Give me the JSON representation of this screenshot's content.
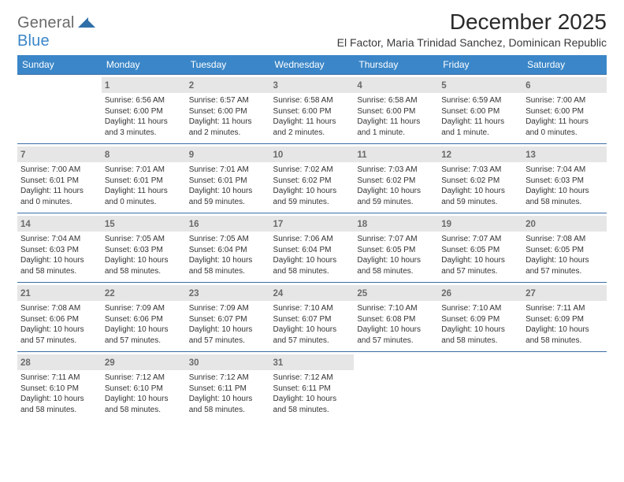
{
  "logo": {
    "text_general": "General",
    "text_blue": "Blue",
    "color_general": "#6a6a6a",
    "color_blue": "#3a86c8",
    "mark_color": "#2f6fa8"
  },
  "title": "December 2025",
  "location": "El Factor, Maria Trinidad Sanchez, Dominican Republic",
  "styling": {
    "header_bg": "#3a86c8",
    "header_fg": "#ffffff",
    "daynum_bg": "#e6e6e6",
    "daynum_fg": "#6a6a6a",
    "cell_border": "#3a6ea5",
    "body_text": "#333333",
    "title_fontsize": 28,
    "location_fontsize": 14,
    "weekday_fontsize": 12,
    "daynum_fontsize": 11.5,
    "entry_fontsize": 10,
    "page_bg": "#ffffff"
  },
  "weekdays": [
    "Sunday",
    "Monday",
    "Tuesday",
    "Wednesday",
    "Thursday",
    "Friday",
    "Saturday"
  ],
  "weeks": [
    [
      null,
      {
        "day": "1",
        "sunrise": "Sunrise: 6:56 AM",
        "sunset": "Sunset: 6:00 PM",
        "daylight": "Daylight: 11 hours and 3 minutes."
      },
      {
        "day": "2",
        "sunrise": "Sunrise: 6:57 AM",
        "sunset": "Sunset: 6:00 PM",
        "daylight": "Daylight: 11 hours and 2 minutes."
      },
      {
        "day": "3",
        "sunrise": "Sunrise: 6:58 AM",
        "sunset": "Sunset: 6:00 PM",
        "daylight": "Daylight: 11 hours and 2 minutes."
      },
      {
        "day": "4",
        "sunrise": "Sunrise: 6:58 AM",
        "sunset": "Sunset: 6:00 PM",
        "daylight": "Daylight: 11 hours and 1 minute."
      },
      {
        "day": "5",
        "sunrise": "Sunrise: 6:59 AM",
        "sunset": "Sunset: 6:00 PM",
        "daylight": "Daylight: 11 hours and 1 minute."
      },
      {
        "day": "6",
        "sunrise": "Sunrise: 7:00 AM",
        "sunset": "Sunset: 6:00 PM",
        "daylight": "Daylight: 11 hours and 0 minutes."
      }
    ],
    [
      {
        "day": "7",
        "sunrise": "Sunrise: 7:00 AM",
        "sunset": "Sunset: 6:01 PM",
        "daylight": "Daylight: 11 hours and 0 minutes."
      },
      {
        "day": "8",
        "sunrise": "Sunrise: 7:01 AM",
        "sunset": "Sunset: 6:01 PM",
        "daylight": "Daylight: 11 hours and 0 minutes."
      },
      {
        "day": "9",
        "sunrise": "Sunrise: 7:01 AM",
        "sunset": "Sunset: 6:01 PM",
        "daylight": "Daylight: 10 hours and 59 minutes."
      },
      {
        "day": "10",
        "sunrise": "Sunrise: 7:02 AM",
        "sunset": "Sunset: 6:02 PM",
        "daylight": "Daylight: 10 hours and 59 minutes."
      },
      {
        "day": "11",
        "sunrise": "Sunrise: 7:03 AM",
        "sunset": "Sunset: 6:02 PM",
        "daylight": "Daylight: 10 hours and 59 minutes."
      },
      {
        "day": "12",
        "sunrise": "Sunrise: 7:03 AM",
        "sunset": "Sunset: 6:02 PM",
        "daylight": "Daylight: 10 hours and 59 minutes."
      },
      {
        "day": "13",
        "sunrise": "Sunrise: 7:04 AM",
        "sunset": "Sunset: 6:03 PM",
        "daylight": "Daylight: 10 hours and 58 minutes."
      }
    ],
    [
      {
        "day": "14",
        "sunrise": "Sunrise: 7:04 AM",
        "sunset": "Sunset: 6:03 PM",
        "daylight": "Daylight: 10 hours and 58 minutes."
      },
      {
        "day": "15",
        "sunrise": "Sunrise: 7:05 AM",
        "sunset": "Sunset: 6:03 PM",
        "daylight": "Daylight: 10 hours and 58 minutes."
      },
      {
        "day": "16",
        "sunrise": "Sunrise: 7:05 AM",
        "sunset": "Sunset: 6:04 PM",
        "daylight": "Daylight: 10 hours and 58 minutes."
      },
      {
        "day": "17",
        "sunrise": "Sunrise: 7:06 AM",
        "sunset": "Sunset: 6:04 PM",
        "daylight": "Daylight: 10 hours and 58 minutes."
      },
      {
        "day": "18",
        "sunrise": "Sunrise: 7:07 AM",
        "sunset": "Sunset: 6:05 PM",
        "daylight": "Daylight: 10 hours and 58 minutes."
      },
      {
        "day": "19",
        "sunrise": "Sunrise: 7:07 AM",
        "sunset": "Sunset: 6:05 PM",
        "daylight": "Daylight: 10 hours and 57 minutes."
      },
      {
        "day": "20",
        "sunrise": "Sunrise: 7:08 AM",
        "sunset": "Sunset: 6:05 PM",
        "daylight": "Daylight: 10 hours and 57 minutes."
      }
    ],
    [
      {
        "day": "21",
        "sunrise": "Sunrise: 7:08 AM",
        "sunset": "Sunset: 6:06 PM",
        "daylight": "Daylight: 10 hours and 57 minutes."
      },
      {
        "day": "22",
        "sunrise": "Sunrise: 7:09 AM",
        "sunset": "Sunset: 6:06 PM",
        "daylight": "Daylight: 10 hours and 57 minutes."
      },
      {
        "day": "23",
        "sunrise": "Sunrise: 7:09 AM",
        "sunset": "Sunset: 6:07 PM",
        "daylight": "Daylight: 10 hours and 57 minutes."
      },
      {
        "day": "24",
        "sunrise": "Sunrise: 7:10 AM",
        "sunset": "Sunset: 6:07 PM",
        "daylight": "Daylight: 10 hours and 57 minutes."
      },
      {
        "day": "25",
        "sunrise": "Sunrise: 7:10 AM",
        "sunset": "Sunset: 6:08 PM",
        "daylight": "Daylight: 10 hours and 57 minutes."
      },
      {
        "day": "26",
        "sunrise": "Sunrise: 7:10 AM",
        "sunset": "Sunset: 6:09 PM",
        "daylight": "Daylight: 10 hours and 58 minutes."
      },
      {
        "day": "27",
        "sunrise": "Sunrise: 7:11 AM",
        "sunset": "Sunset: 6:09 PM",
        "daylight": "Daylight: 10 hours and 58 minutes."
      }
    ],
    [
      {
        "day": "28",
        "sunrise": "Sunrise: 7:11 AM",
        "sunset": "Sunset: 6:10 PM",
        "daylight": "Daylight: 10 hours and 58 minutes."
      },
      {
        "day": "29",
        "sunrise": "Sunrise: 7:12 AM",
        "sunset": "Sunset: 6:10 PM",
        "daylight": "Daylight: 10 hours and 58 minutes."
      },
      {
        "day": "30",
        "sunrise": "Sunrise: 7:12 AM",
        "sunset": "Sunset: 6:11 PM",
        "daylight": "Daylight: 10 hours and 58 minutes."
      },
      {
        "day": "31",
        "sunrise": "Sunrise: 7:12 AM",
        "sunset": "Sunset: 6:11 PM",
        "daylight": "Daylight: 10 hours and 58 minutes."
      },
      null,
      null,
      null
    ]
  ]
}
